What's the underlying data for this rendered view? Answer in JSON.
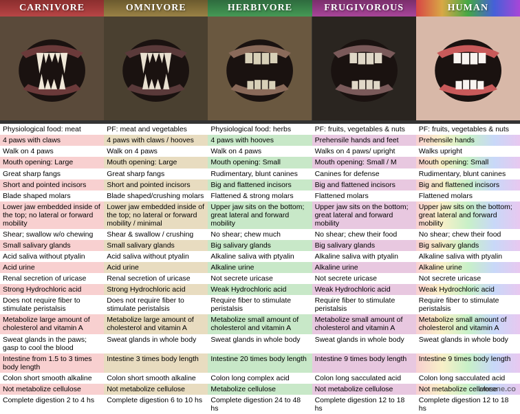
{
  "watermark": "werone.co",
  "columns": [
    {
      "label": "CARNIVORE",
      "header_bg": "linear-gradient(#8b2e2e,#b84545)",
      "alt_bg": "#f8d0d0",
      "mouth": {
        "bg": "#5a4a3a",
        "teeth": "#f0e8d8",
        "gum": "#6b3a3a",
        "fang": true
      }
    },
    {
      "label": "OMNIVORE",
      "header_bg": "linear-gradient(#6b5a2e,#9a8245)",
      "alt_bg": "#e8dcc0",
      "mouth": {
        "bg": "#4a4030",
        "teeth": "#e8e0d0",
        "gum": "#5a3a3a",
        "fang": true
      }
    },
    {
      "label": "HERBIVORE",
      "header_bg": "linear-gradient(#2e6b3e,#459a55)",
      "alt_bg": "#c8e8c8",
      "mouth": {
        "bg": "#6a5840",
        "teeth": "#d8d0b8",
        "gum": "#8a6a5a",
        "fang": false
      }
    },
    {
      "label": "FRUGIVOROUS",
      "header_bg": "linear-gradient(#7a2e6b,#a8459a)",
      "alt_bg": "#e8c8e0",
      "mouth": {
        "bg": "#2a2520",
        "teeth": "#e0d8c8",
        "gum": "#7a5a5a",
        "fang": false
      }
    },
    {
      "label": "HUMAN",
      "header_bg": "linear-gradient(90deg,#d84545,#d8a845,#45a845,#4560d8,#a845d8)",
      "alt_bg": "linear-gradient(90deg,#f8d0d0,#f8f0c8,#c8f0c8,#c8d8f8,#e8c8f0)",
      "mouth": {
        "bg": "#d8b8a8",
        "teeth": "#f8f4f0",
        "gum": "#c85a5a",
        "fang": false
      }
    }
  ],
  "rows": [
    [
      "Physiological food: meat",
      "PF: meat and vegetables",
      "Physiological food: herbs",
      "PF: fruits, vegetables & nuts",
      "PF: fruits, vegetables & nuts"
    ],
    [
      "4 paws with claws",
      "4 paws with claws / hooves",
      "4 paws with hooves",
      "Prehensile hands and feet",
      "Prehensile hands"
    ],
    [
      "Walk on 4 paws",
      "Walk on 4 paws",
      "Walk on 4 paws",
      "Walks on 4 paws/ upright",
      "Walks upright"
    ],
    [
      "Mouth opening: Large",
      "Mouth opening: Large",
      "Mouth opening: Small",
      "Mouth opening: Small / M",
      "Mouth opening: Small"
    ],
    [
      "Great sharp fangs",
      "Great sharp fangs",
      "Rudimentary, blunt canines",
      "Canines for defense",
      "Rudimentary, blunt canines"
    ],
    [
      "Short and pointed incisors",
      "Short and pointed incisors",
      "Big and flattened incisors",
      "Big and flattened incisors",
      "Big and flattened incisors"
    ],
    [
      "Blade shaped molars",
      "Blade shaped/crushing molars",
      "Flattened & strong molars",
      "Flattened molars",
      "Flattened molars"
    ],
    [
      "Lower jaw embedded inside of the top; no lateral or forward mobility",
      "Lower jaw embedded inside of the top; no lateral or forward mobility / minimal",
      "Upper jaw sits on the bottom; great lateral and forward mobility",
      "Upper jaw sits on the bottom; great lateral and forward mobility",
      "Upper jaw sits on the bottom; great lateral and forward mobility"
    ],
    [
      "Shear; swallow w/o chewing",
      "Shear & swallow / crushing",
      "No shear; chew much",
      "No shear; chew their food",
      "No shear; chew their food"
    ],
    [
      "Small salivary glands",
      "Small salivary glands",
      "Big salivary glands",
      "Big salivary glands",
      "Big salivary glands"
    ],
    [
      "Acid saliva without ptyalin",
      "Acid saliva without ptyalin",
      "Alkaline saliva with ptyalin",
      "Alkaline saliva with ptyalin",
      "Alkaline saliva with ptyalin"
    ],
    [
      "Acid urine",
      "Acid urine",
      "Alkaline urine",
      "Alkaline urine",
      "Alkaline urine"
    ],
    [
      "Renal secretion of uricase",
      "Renal secretion of uricase",
      "Not secrete uricase",
      "Not secrete uricase",
      "Not secrete uricase"
    ],
    [
      "Strong Hydrochloric acid",
      "Strong Hydrochloric acid",
      "Weak Hydrochloric acid",
      "Weak Hydrochloric acid",
      "Weak Hydrochloric acid"
    ],
    [
      "Does not require fiber to stimulate peristalsis",
      "Does not require fiber to stimulate peristalsis",
      "Require fiber to stimulate peristalsis",
      "Require fiber to stimulate peristalsis",
      "Require fiber to stimulate peristalsis"
    ],
    [
      "Metabolize large amount of cholesterol and vitamin A",
      "Metabolize large amount of cholesterol and vitamin A",
      "Metabolize small amount of cholesterol and vitamin A",
      "Metabolize small amount of cholesterol and vitamin A",
      "Metabolize small amount of cholesterol and vitamin A"
    ],
    [
      "Sweat glands in the paws; gasp to cool the blood",
      "Sweat glands in whole body",
      "Sweat glands in whole body",
      "Sweat glands in whole body",
      "Sweat glands in whole body"
    ],
    [
      "Intestine from 1.5 to 3 times body length",
      "Intestine 3 times body length",
      "Intestine 20 times body length",
      "Intestine 9 times body length",
      "Intestine 9 times body length"
    ],
    [
      "Colon short smooth alkaline",
      "Colon short smooth alkaline",
      "Colon long complex acid",
      "Colon long sacculated acid",
      "Colon long sacculated acid"
    ],
    [
      "Not metabolize cellulose",
      "Not metabolize cellulose",
      "Metabolize cellulose",
      "Not metabolize cellulose",
      "Not metabolize cellulose"
    ],
    [
      "Complete digestion 2 to 4 hs",
      "Complete digestion 6 to 10 hs",
      "Complete digestion 24 to 48 hs",
      "Complete digestion 12 to 18 hs",
      "Complete digestion 12 to 18 hs"
    ]
  ]
}
